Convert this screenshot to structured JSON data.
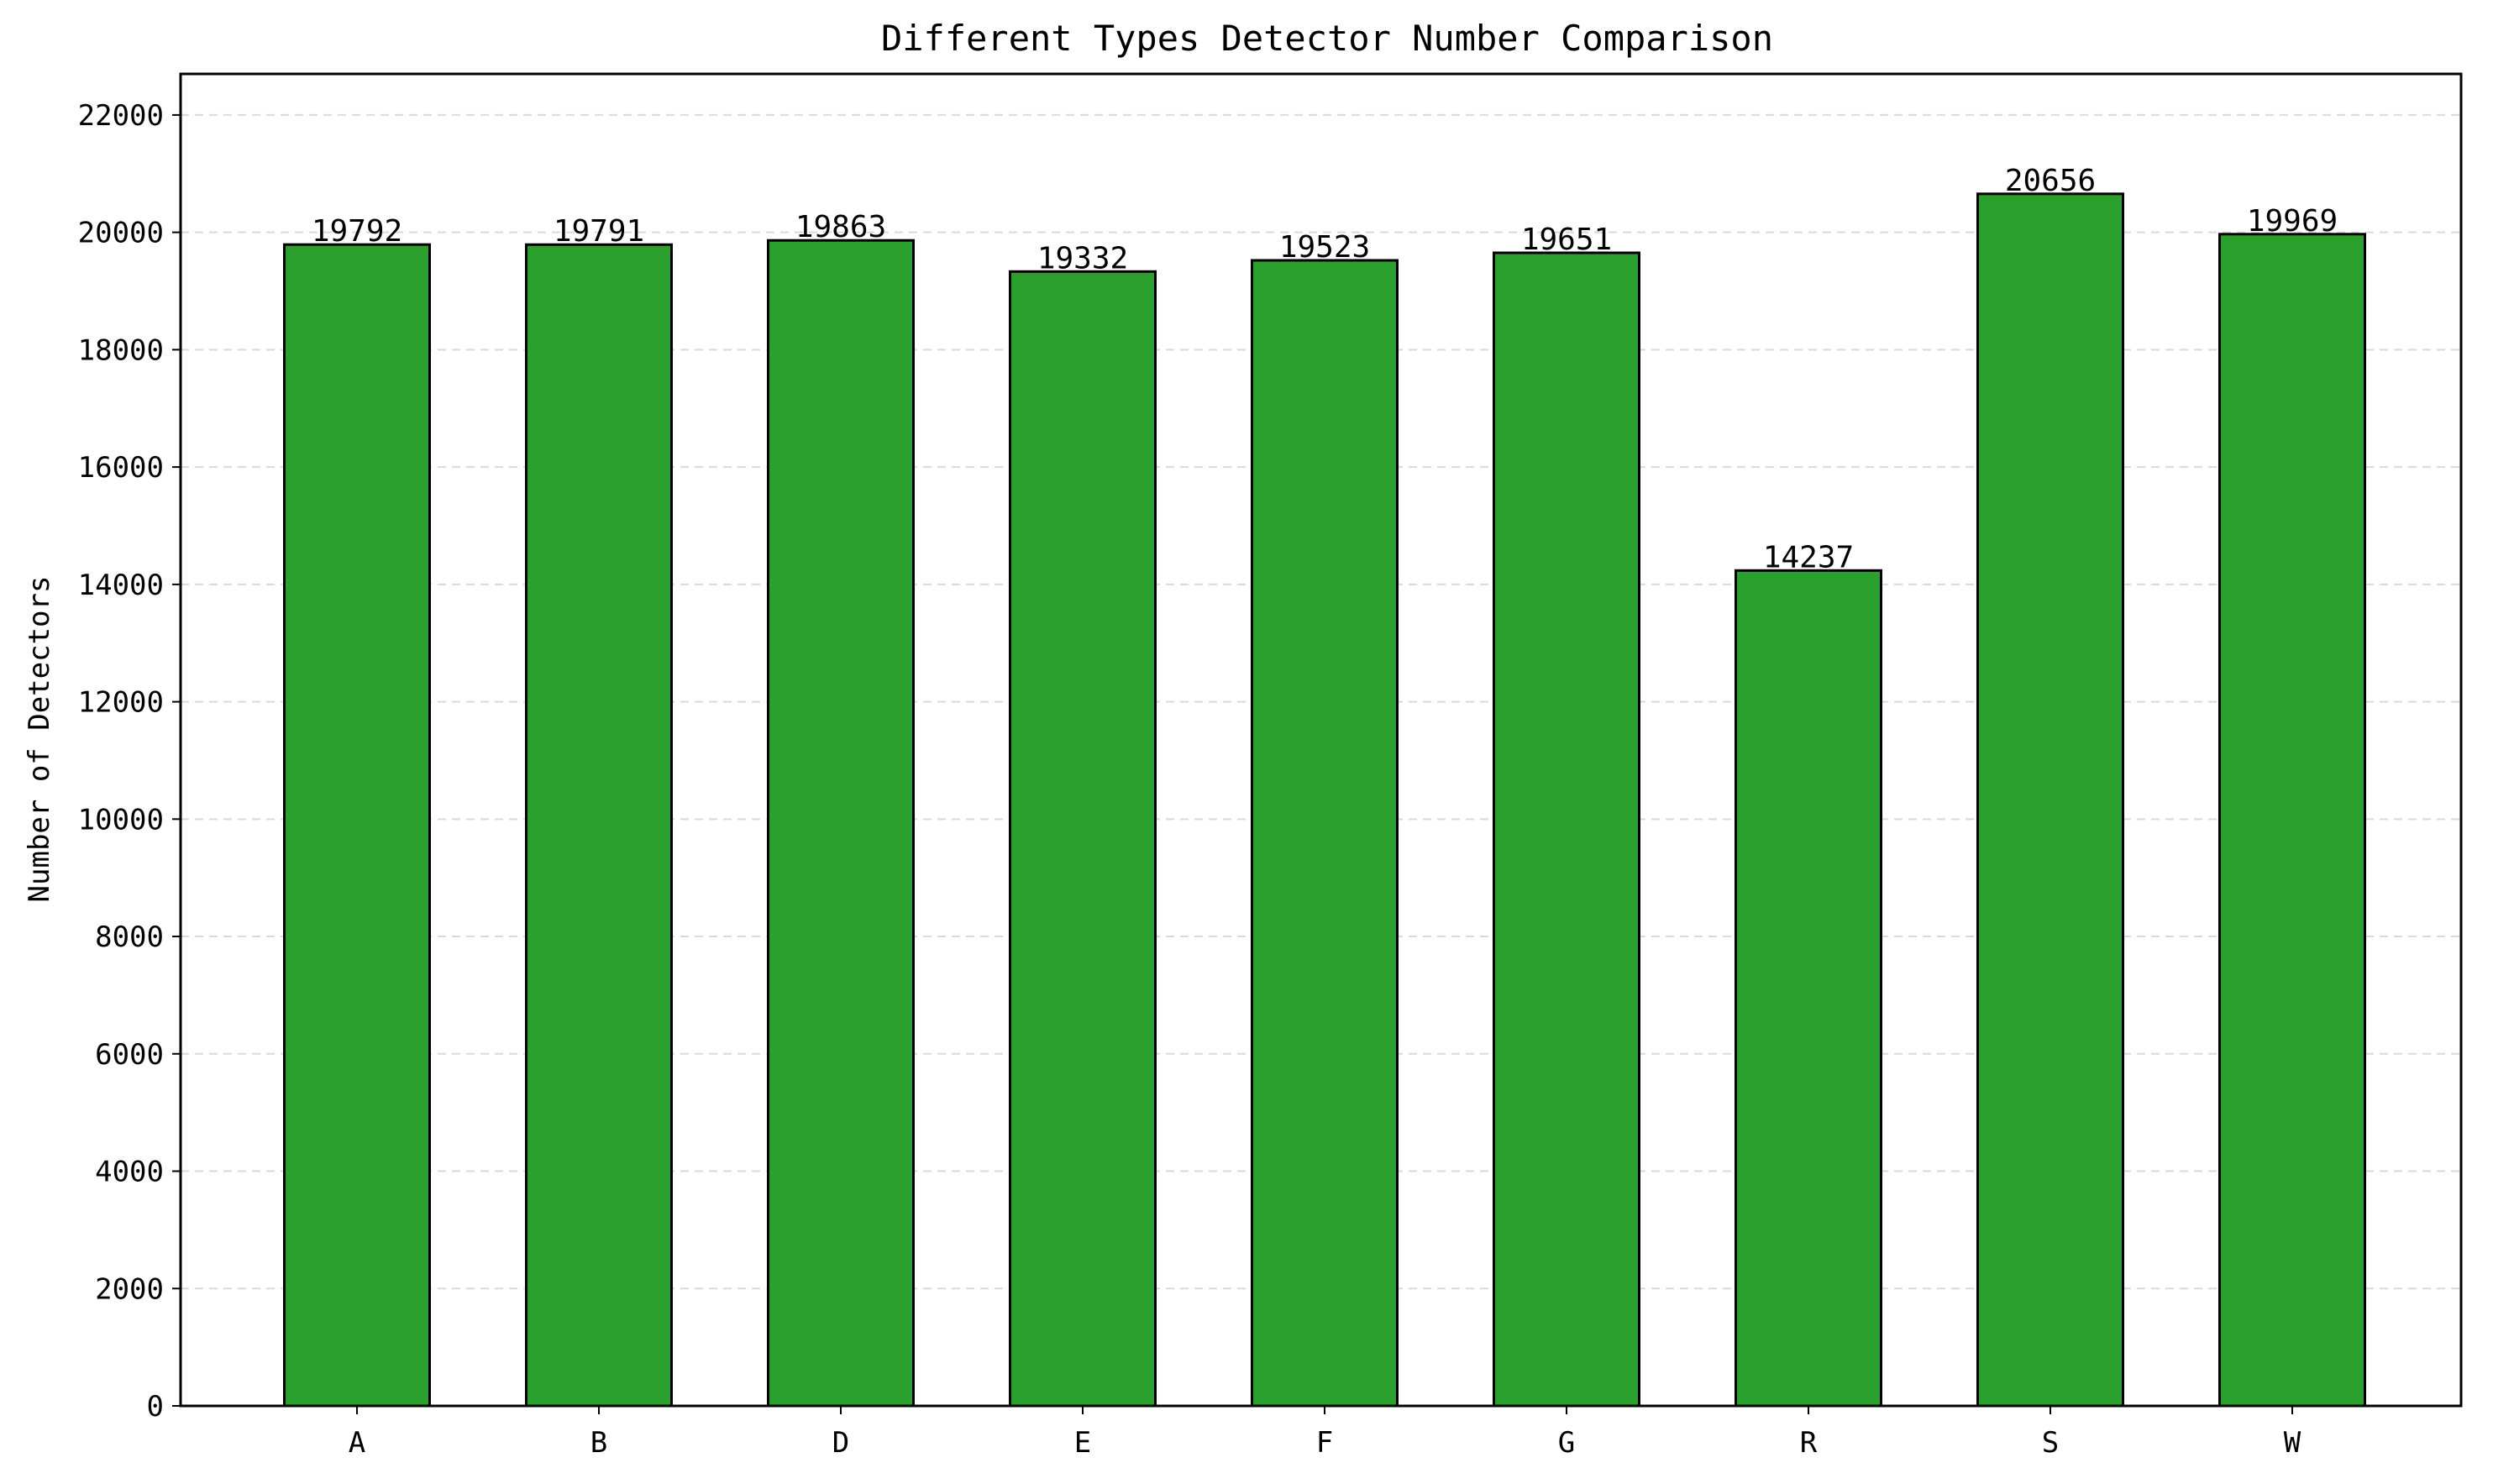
{
  "chart_data": {
    "type": "bar",
    "title": "Different Types Detector Number Comparison",
    "xlabel": "",
    "ylabel": "Number of Detectors",
    "categories": [
      "A",
      "B",
      "D",
      "E",
      "F",
      "G",
      "R",
      "S",
      "W"
    ],
    "values": [
      19792,
      19791,
      19863,
      19332,
      19523,
      19651,
      14237,
      20656,
      19969
    ],
    "data_labels": [
      "19792",
      "19791",
      "19863",
      "19332",
      "19523",
      "19651",
      "14237",
      "20656",
      "19969"
    ],
    "ylim": [
      0,
      22700
    ],
    "yticks": [
      0,
      2000,
      4000,
      6000,
      8000,
      10000,
      12000,
      14000,
      16000,
      18000,
      20000,
      22000
    ],
    "ytick_labels": [
      "0",
      "2000",
      "4000",
      "6000",
      "8000",
      "10000",
      "12000",
      "14000",
      "16000",
      "18000",
      "20000",
      "22000"
    ],
    "grid": "y-dashed",
    "bar_color": "#2ca02c",
    "edge_color": "#000000",
    "grid_color": "#d9d9d9"
  }
}
